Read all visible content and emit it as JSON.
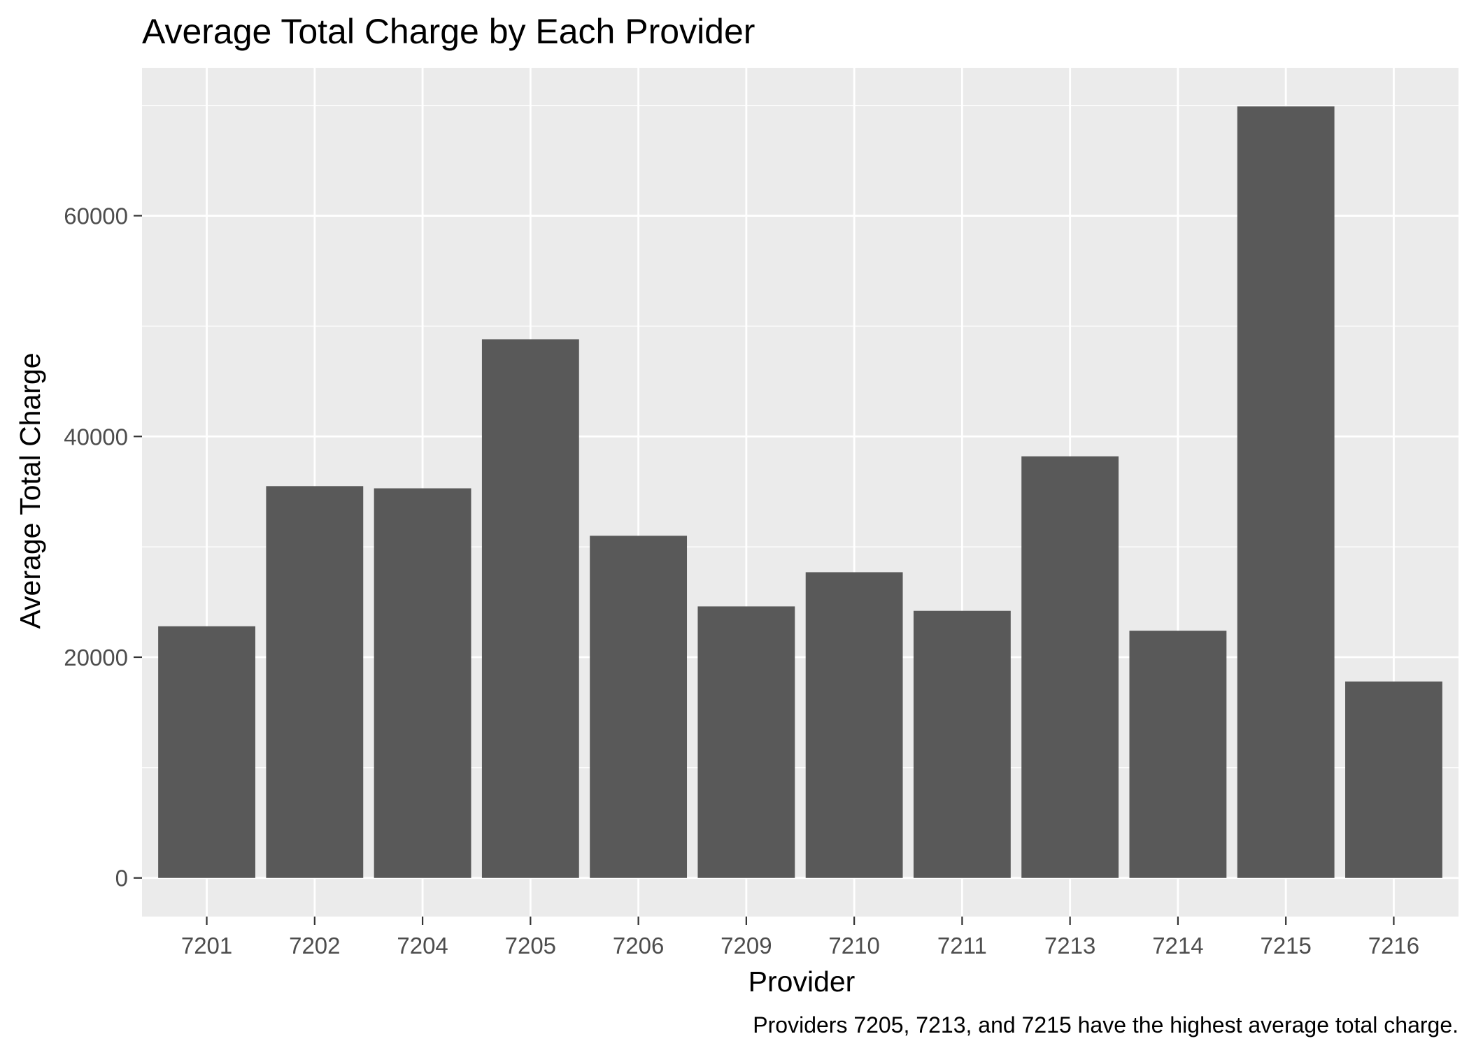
{
  "chart_data": {
    "type": "bar",
    "title": "Average Total Charge by Each Provider",
    "xlabel": "Provider",
    "ylabel": "Average Total Charge",
    "caption": "Providers 7205, 7213, and 7215 have the highest average total charge.",
    "categories": [
      "7201",
      "7202",
      "7204",
      "7205",
      "7206",
      "7209",
      "7210",
      "7211",
      "7213",
      "7214",
      "7215",
      "7216"
    ],
    "values": [
      22800,
      35500,
      35300,
      48800,
      31000,
      24600,
      27700,
      24200,
      38200,
      22400,
      69900,
      17800
    ],
    "ylim": [
      -3500,
      73400
    ],
    "yticks": [
      0,
      20000,
      40000,
      60000
    ],
    "ytick_labels": [
      "0",
      "20000",
      "40000",
      "60000"
    ],
    "grid": true,
    "colors": {
      "bar": "#595959",
      "panel": "#ebebeb",
      "grid": "#ffffff",
      "tick_text": "#4d4d4d",
      "tick_mark": "#333333"
    }
  }
}
